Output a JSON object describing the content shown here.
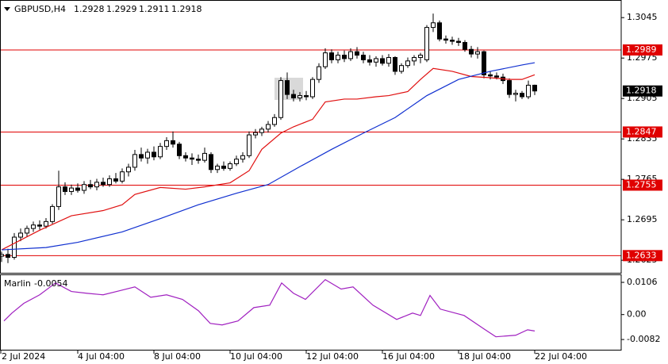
{
  "chart_data": [
    {
      "type": "candlestick",
      "title": "GBPUSD,H4",
      "categories": [
        "2 Jul 2024",
        null,
        null,
        null,
        null,
        null,
        null,
        null,
        null,
        null,
        null,
        null,
        null,
        "4 Jul 04:00",
        null,
        null,
        null,
        null,
        null,
        null,
        null,
        null,
        null,
        null,
        null,
        "8 Jul 04:00",
        null,
        null,
        null,
        null,
        null,
        null,
        null,
        null,
        null,
        null,
        null,
        "10 Jul 04:00",
        null,
        null,
        null,
        null,
        null,
        null,
        null,
        null,
        null,
        null,
        null,
        "12 Jul 04:00",
        null,
        null,
        null,
        null,
        null,
        null,
        null,
        null,
        null,
        null,
        null,
        "16 Jul 04:00",
        null,
        null,
        null,
        null,
        null,
        null,
        null,
        null,
        null,
        null,
        null,
        "18 Jul 04:00",
        null,
        null,
        null,
        null,
        null,
        null,
        null,
        null,
        null,
        null,
        null,
        "22 Jul 04:00"
      ],
      "open": [
        1.264,
        1.2632,
        1.2635,
        1.263,
        1.2665,
        1.2672,
        1.268,
        1.2686,
        1.2684,
        1.2692,
        1.2718,
        1.2752,
        1.2744,
        1.275,
        1.2746,
        1.2756,
        1.2752,
        1.276,
        1.2756,
        1.2766,
        1.2762,
        1.2778,
        1.2786,
        1.2808,
        1.2802,
        1.2812,
        1.2804,
        1.2822,
        1.2832,
        1.2826,
        1.2806,
        1.2802,
        1.28,
        1.2798,
        1.2808,
        1.2782,
        1.2788,
        1.2784,
        1.2792,
        1.28,
        1.2806,
        1.2842,
        1.2846,
        1.2852,
        1.286,
        1.2872,
        1.2936,
        1.2912,
        1.2906,
        1.291,
        1.2908,
        1.2938,
        1.296,
        1.2984,
        1.2972,
        1.298,
        1.2974,
        1.2986,
        1.298,
        1.2972,
        1.2968,
        1.2974,
        1.2966,
        1.2976,
        1.2952,
        1.2962,
        1.297,
        1.2976,
        1.2972,
        1.3028,
        1.3036,
        1.3008,
        1.3006,
        1.3004,
        1.3002,
        1.299,
        1.2982,
        1.2986,
        1.2946,
        1.2944,
        1.2942,
        1.2936,
        1.2912,
        1.2914,
        1.2908,
        1.2928
      ],
      "high": [
        1.2648,
        1.264,
        1.2645,
        1.2672,
        1.268,
        1.2685,
        1.2692,
        1.2694,
        1.2698,
        1.2722,
        1.278,
        1.276,
        1.2756,
        1.2758,
        1.2762,
        1.2764,
        1.2766,
        1.2768,
        1.2772,
        1.2776,
        1.2784,
        1.2792,
        1.2816,
        1.282,
        1.2818,
        1.2822,
        1.2828,
        1.2838,
        1.2848,
        1.283,
        1.2812,
        1.281,
        1.2808,
        1.282,
        1.2812,
        1.2792,
        1.2796,
        1.2796,
        1.2806,
        1.2812,
        1.2848,
        1.2852,
        1.2856,
        1.2866,
        1.2878,
        1.2942,
        1.295,
        1.292,
        1.2916,
        1.2918,
        1.2942,
        1.2966,
        1.2992,
        1.299,
        1.2986,
        1.2988,
        1.2992,
        1.2994,
        1.2986,
        1.298,
        1.2978,
        1.298,
        1.2982,
        1.2978,
        1.2966,
        1.2976,
        1.298,
        1.2984,
        1.3032,
        1.3052,
        1.304,
        1.3014,
        1.3012,
        1.301,
        1.3006,
        1.2996,
        1.2994,
        1.2988,
        1.2952,
        1.295,
        1.2948,
        1.294,
        1.292,
        1.2918,
        1.2936,
        1.2929
      ],
      "low": [
        1.2628,
        1.2622,
        1.262,
        1.2626,
        1.2658,
        1.2666,
        1.2674,
        1.2678,
        1.268,
        1.2688,
        1.2712,
        1.2738,
        1.2738,
        1.2742,
        1.274,
        1.2748,
        1.2746,
        1.2752,
        1.2752,
        1.2758,
        1.2758,
        1.277,
        1.278,
        1.2796,
        1.2792,
        1.2798,
        1.28,
        1.2816,
        1.282,
        1.28,
        1.2796,
        1.279,
        1.2792,
        1.2794,
        1.2776,
        1.2776,
        1.278,
        1.278,
        1.2788,
        1.2794,
        1.2802,
        1.2836,
        1.284,
        1.2846,
        1.2856,
        1.2868,
        1.2904,
        1.29,
        1.29,
        1.2902,
        1.2904,
        1.2932,
        1.2956,
        1.2966,
        1.2966,
        1.2968,
        1.297,
        1.2974,
        1.2966,
        1.2962,
        1.296,
        1.2962,
        1.296,
        1.2946,
        1.2948,
        1.2958,
        1.2962,
        1.2966,
        1.2968,
        1.302,
        1.3004,
        1.3,
        1.2998,
        1.2996,
        1.2986,
        1.2976,
        1.2974,
        1.294,
        1.2938,
        1.2938,
        1.293,
        1.2906,
        1.29,
        1.2904,
        1.2904,
        1.2911
      ],
      "close": [
        1.2632,
        1.2635,
        1.263,
        1.2665,
        1.2672,
        1.268,
        1.2686,
        1.2684,
        1.2692,
        1.2718,
        1.2752,
        1.2744,
        1.275,
        1.2746,
        1.2756,
        1.2752,
        1.276,
        1.2756,
        1.2766,
        1.2762,
        1.2778,
        1.2786,
        1.2808,
        1.2802,
        1.2812,
        1.2804,
        1.2822,
        1.2832,
        1.2826,
        1.2806,
        1.2802,
        1.28,
        1.2798,
        1.281,
        1.2782,
        1.2788,
        1.2784,
        1.2792,
        1.28,
        1.2806,
        1.2842,
        1.2846,
        1.2852,
        1.286,
        1.2872,
        1.2936,
        1.2912,
        1.2906,
        1.291,
        1.2908,
        1.2938,
        1.296,
        1.2984,
        1.2972,
        1.298,
        1.2974,
        1.2986,
        1.298,
        1.2972,
        1.2968,
        1.2974,
        1.2966,
        1.2976,
        1.2952,
        1.2962,
        1.297,
        1.2976,
        1.298,
        1.3028,
        1.3036,
        1.3008,
        1.3006,
        1.3004,
        1.3002,
        1.299,
        1.2982,
        1.2986,
        1.2946,
        1.2944,
        1.2942,
        1.2936,
        1.2912,
        1.2914,
        1.2908,
        1.2928,
        1.2918
      ],
      "up_color": "#ffffff",
      "down_color": "#000000",
      "series": [
        {
          "color": "#e01010",
          "x": [
            1,
            7,
            12,
            17,
            20,
            22,
            26,
            30,
            33,
            37,
            40,
            42,
            45,
            47,
            50,
            52,
            55,
            57,
            60,
            62,
            65,
            67,
            69,
            72,
            75,
            78,
            81,
            83,
            85
          ],
          "values": [
            1.2643,
            1.2677,
            1.2702,
            1.2711,
            1.2721,
            1.2739,
            1.2751,
            1.2748,
            1.2752,
            1.2759,
            1.278,
            1.2817,
            1.2845,
            1.2856,
            1.2869,
            1.2899,
            1.2904,
            1.2904,
            1.2908,
            1.291,
            1.2917,
            1.2938,
            1.2957,
            1.2952,
            1.2943,
            1.2941,
            1.2938,
            1.2938,
            1.2946
          ]
        },
        {
          "color": "#1030d0",
          "x": [
            1,
            8,
            13,
            20,
            26,
            32,
            38,
            43,
            48,
            53,
            58,
            63,
            68,
            73,
            78,
            83,
            85
          ],
          "values": [
            1.2643,
            1.2647,
            1.2656,
            1.2674,
            1.2697,
            1.2721,
            1.2741,
            1.2756,
            1.2787,
            1.2817,
            1.2845,
            1.2872,
            1.291,
            1.2938,
            1.2952,
            1.2963,
            1.2967
          ]
        }
      ],
      "levels": [
        1.2989,
        1.2847,
        1.2755,
        1.2633
      ],
      "level_color": "#e00000",
      "ylim": [
        1.2606,
        1.307
      ],
      "yticks": [
        1.3045,
        1.2975,
        1.2905,
        1.2835,
        1.2765,
        1.2695,
        1.2625
      ],
      "grid": false
    },
    {
      "type": "line",
      "series": [
        {
          "name": "Marlin",
          "color": "#a020c0",
          "x": [
            1.375,
            2.625,
            4.5,
            7,
            9.5,
            12,
            14.5,
            17,
            19.5,
            22,
            24.5,
            27,
            29.5,
            32,
            33.875,
            35.75,
            38.25,
            40.75,
            43.25,
            45.125,
            47,
            48.875,
            52,
            54.5,
            56.375,
            59.5,
            63.25,
            65.75,
            67,
            68.5,
            70.125,
            73.875,
            77,
            78.875,
            82,
            83.875,
            85
          ],
          "values": [
            -0.0021,
            0.0005,
            0.0037,
            0.0065,
            0.0104,
            0.0076,
            0.007,
            0.0065,
            0.0078,
            0.0091,
            0.0057,
            0.0065,
            0.005,
            0.0013,
            -0.0029,
            -0.0034,
            -0.0021,
            0.0023,
            0.0031,
            0.0104,
            0.007,
            0.005,
            0.0115,
            0.0084,
            0.0091,
            0.0031,
            -0.0016,
            0.0005,
            -0.0003,
            0.0063,
            0.0018,
            -0.0003,
            -0.0047,
            -0.0073,
            -0.0068,
            -0.005,
            -0.0054
          ]
        }
      ],
      "ylim": [
        -0.0113,
        0.0127
      ],
      "yticks": [
        0.0106,
        {
          "value": 0,
          "label": "0.00"
        },
        -0.0082
      ]
    }
  ]
}
